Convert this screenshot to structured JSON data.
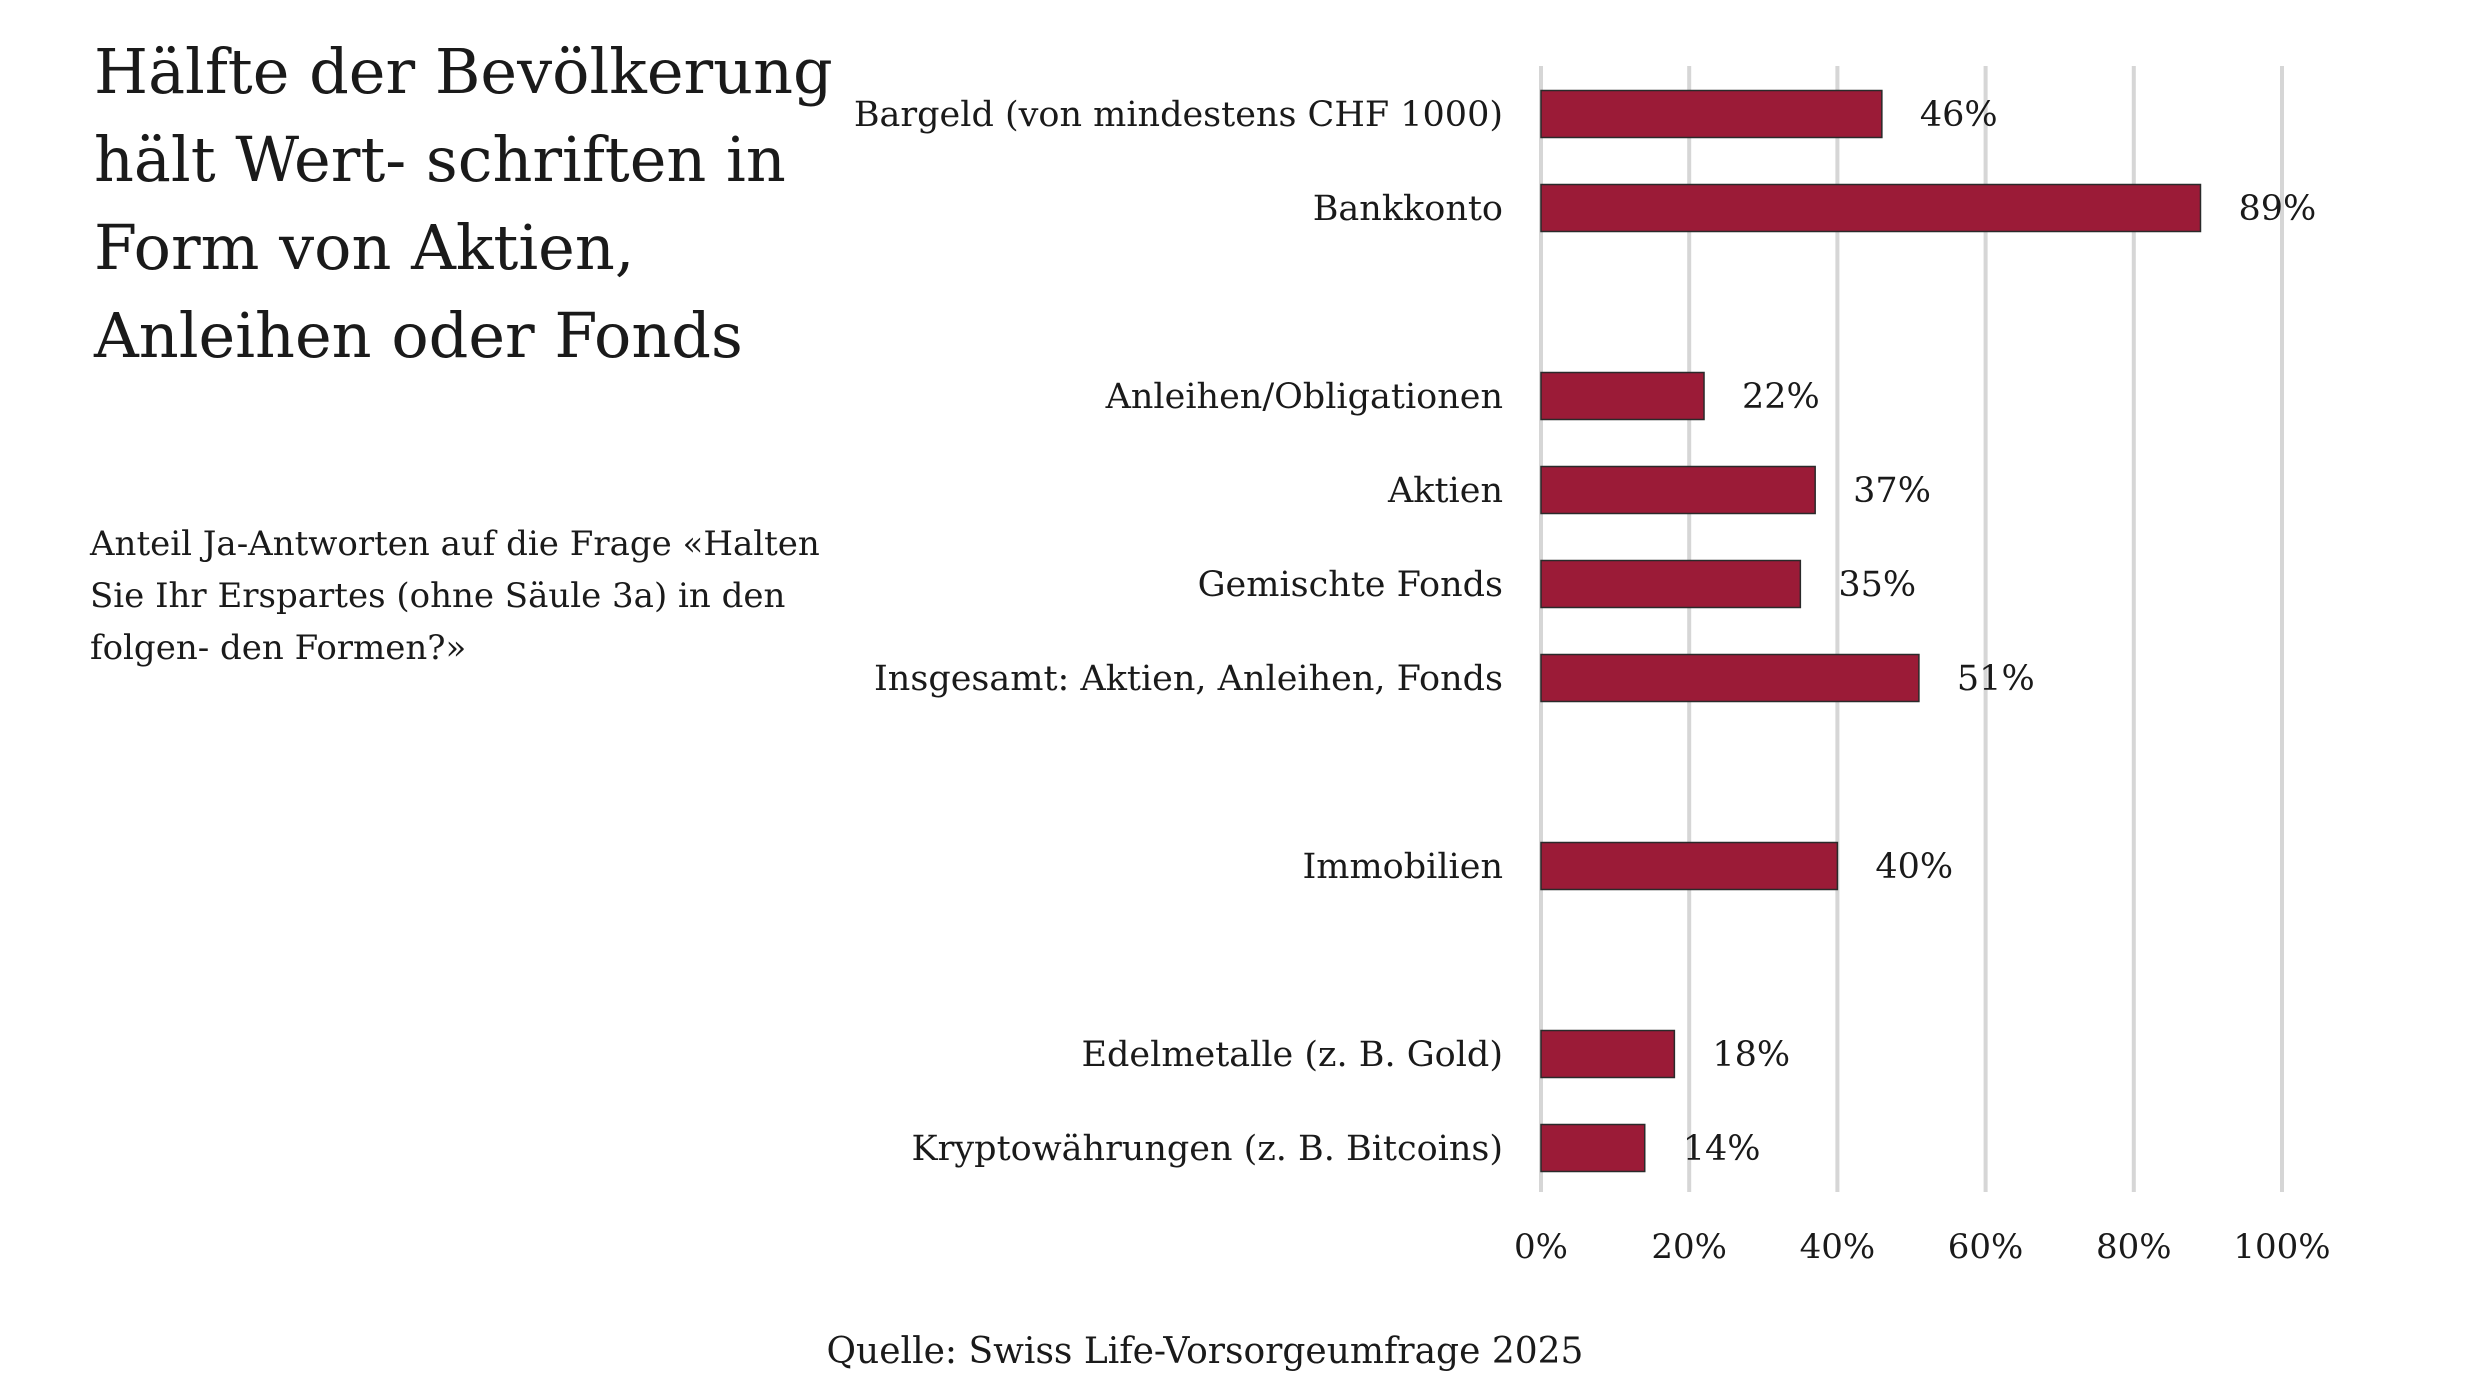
{
  "header": {
    "title": "Hälfte der Bevölkerung hält Wert- schriften in Form von Aktien, Anleihen oder Fonds",
    "subtitle": "Anteil Ja-Antworten auf die Frage «Halten Sie Ihr Erspartes (ohne Säule 3a) in den folgen- den Formen?»",
    "source": "Quelle: Swiss Life-Vorsorgeumfrage 2025"
  },
  "colors": {
    "bar": "#9b1b37",
    "bar_border": "#2a2a2a",
    "grid": "#d6d6d6",
    "text": "#1a1a1a"
  },
  "chart_data": {
    "type": "bar",
    "orientation": "horizontal",
    "title": "",
    "xlabel": "",
    "ylabel": "",
    "xlim": [
      0,
      100
    ],
    "x_ticks": [
      "0%",
      "20%",
      "40%",
      "60%",
      "80%",
      "100%"
    ],
    "grid": true,
    "legend": "none",
    "groups": [
      {
        "categories": [
          "Bargeld (von mindestens CHF 1000)",
          "Bankkonto"
        ],
        "values": [
          46,
          89
        ],
        "labels": [
          "46%",
          "89%"
        ]
      },
      {
        "categories": [
          "Anleihen/Obligationen",
          "Aktien",
          "Gemischte Fonds",
          "Insgesamt: Aktien, Anleihen, Fonds"
        ],
        "values": [
          22,
          37,
          35,
          51
        ],
        "labels": [
          "22%",
          "37%",
          "35%",
          "51%"
        ]
      },
      {
        "categories": [
          "Immobilien"
        ],
        "values": [
          40
        ],
        "labels": [
          "40%"
        ]
      },
      {
        "categories": [
          "Edelmetalle (z. B. Gold)",
          "Kryptowährungen (z. B. Bitcoins)"
        ],
        "values": [
          18,
          14
        ],
        "labels": [
          "18%",
          "14%"
        ]
      }
    ]
  }
}
